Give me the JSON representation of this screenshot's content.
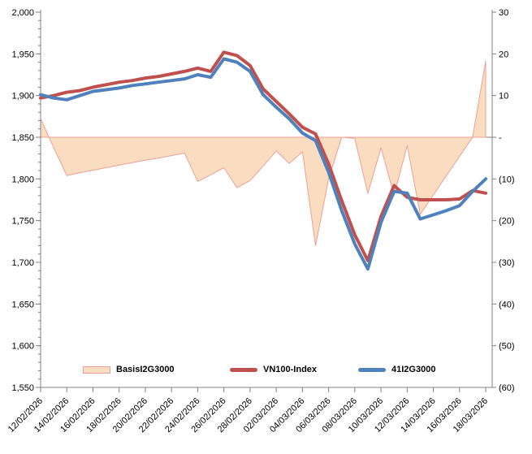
{
  "legend": {
    "items": [
      {
        "label": "BasisI2G3000",
        "swatch": "area",
        "fill": "#FADCC1",
        "border": "#ECA095"
      },
      {
        "label": "VN100-Index",
        "swatch": "line",
        "color": "#C0504D"
      },
      {
        "label": "41I2G3000",
        "swatch": "line",
        "color": "#4F81BD"
      }
    ]
  },
  "chart_data": {
    "type": "combo",
    "subtypes": [
      "area",
      "line",
      "line"
    ],
    "x": [
      "12/02/2026",
      "13/02/2026",
      "14/02/2026",
      "15/02/2026",
      "16/02/2026",
      "17/02/2026",
      "18/02/2026",
      "19/02/2026",
      "20/02/2026",
      "21/02/2026",
      "22/02/2026",
      "23/02/2026",
      "24/02/2026",
      "25/02/2026",
      "26/02/2026",
      "27/02/2026",
      "28/02/2026",
      "01/03/2026",
      "02/03/2026",
      "03/03/2026",
      "04/03/2026",
      "05/03/2026",
      "06/03/2026",
      "07/03/2026",
      "08/03/2026",
      "09/03/2026",
      "10/03/2026",
      "11/03/2026",
      "12/03/2026",
      "13/03/2026",
      "14/03/2026",
      "15/03/2026",
      "16/03/2026",
      "17/03/2026",
      "18/03/2026"
    ],
    "x_tick_every": 2,
    "series": [
      {
        "name": "BasisI2G3000",
        "type": "area",
        "axis": "right",
        "fill": "#FADCC1",
        "stroke": "#ECA095",
        "values": [
          4.5,
          -2.5,
          -9.2,
          -8.5,
          -7.9,
          -7.3,
          -6.7,
          -6.1,
          -5.5,
          -5.0,
          -4.4,
          -3.8,
          -10.6,
          -9.0,
          -7.3,
          -12.1,
          -10.4,
          -6.9,
          -3.3,
          -6.3,
          -3.5,
          -26.0,
          -10.0,
          0.0,
          -0.3,
          -13.5,
          -2.5,
          -14.0,
          -2.0,
          -18.5,
          -13.9,
          -9.2,
          -4.6,
          0.0,
          18.3
        ]
      },
      {
        "name": "VN100-Index",
        "type": "line",
        "axis": "left",
        "color": "#C0504D",
        "width": 4,
        "values": [
          1897,
          1900,
          1904,
          1906,
          1910,
          1913,
          1916,
          1918,
          1921,
          1923,
          1926,
          1929,
          1933,
          1929,
          1952,
          1948,
          1936,
          1908,
          1893,
          1878,
          1862,
          1854,
          1818,
          1774,
          1733,
          1702,
          1755,
          1792,
          1778,
          1775,
          1775,
          1775,
          1776,
          1786,
          1783
        ]
      },
      {
        "name": "41I2G3000",
        "type": "line",
        "axis": "left",
        "color": "#4F81BD",
        "width": 4,
        "values": [
          1901,
          1897,
          1895,
          1900,
          1905,
          1907,
          1909,
          1912,
          1914,
          1916,
          1918,
          1920,
          1925,
          1922,
          1944,
          1940,
          1929,
          1901,
          1886,
          1872,
          1855,
          1846,
          1808,
          1762,
          1722,
          1692,
          1748,
          1785,
          1783,
          1752,
          1757,
          1762,
          1768,
          1785,
          1800
        ]
      }
    ],
    "left_axis": {
      "min": 1550,
      "max": 2000,
      "step": 50,
      "minor_step": 10,
      "labels": [
        "2,000",
        "1,950",
        "1,900",
        "1,850",
        "1,800",
        "1,750",
        "1,700",
        "1,650",
        "1,600",
        "1,550"
      ]
    },
    "right_axis": {
      "min": -60,
      "max": 30,
      "step": 10,
      "labels": [
        "30",
        "20",
        "10",
        "-",
        "(10)",
        "(20)",
        "(30)",
        "(40)",
        "(50)",
        "(60)"
      ]
    },
    "baseline_left_value": 1850,
    "grid": "none",
    "axis_color": "#808080",
    "legend_position": "bottom"
  }
}
